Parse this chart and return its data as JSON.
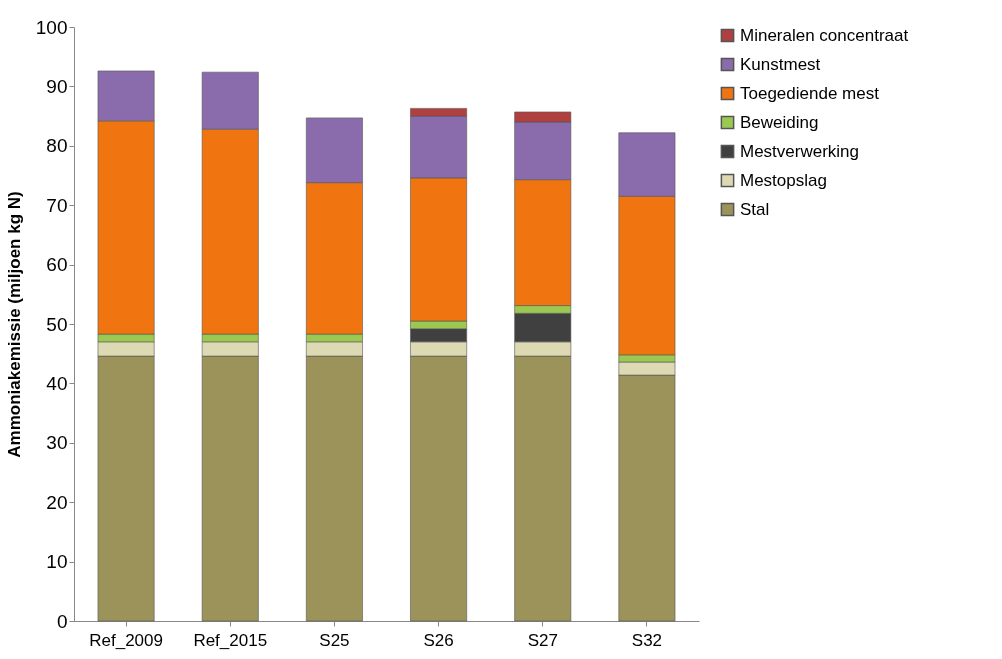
{
  "chart_data": {
    "type": "bar",
    "stacked": true,
    "ylabel": "Ammoniakemissie (miljoen kg N)",
    "categories": [
      "Ref_2009",
      "Ref_2015",
      "S25",
      "S26",
      "S27",
      "S32"
    ],
    "series": [
      {
        "name": "Stal",
        "color": "#9c935a",
        "values": [
          44.6,
          44.6,
          44.6,
          44.6,
          44.6,
          41.4
        ]
      },
      {
        "name": "Mestopslag",
        "color": "#ddd9b3",
        "values": [
          2.4,
          2.4,
          2.4,
          2.4,
          2.4,
          2.2
        ]
      },
      {
        "name": "Mestverwerking",
        "color": "#404040",
        "values": [
          null,
          null,
          null,
          2.2,
          4.8,
          null
        ]
      },
      {
        "name": "Beweiding",
        "color": "#9bc850",
        "values": [
          1.3,
          1.3,
          1.3,
          1.3,
          1.3,
          1.2
        ]
      },
      {
        "name": "Toegediende mest",
        "color": "#f07510",
        "values": [
          35.9,
          34.5,
          25.5,
          24.1,
          21.2,
          26.7
        ]
      },
      {
        "name": "Kunstmest",
        "color": "#8a6bab",
        "values": [
          8.4,
          9.6,
          10.9,
          10.4,
          9.7,
          10.7
        ]
      },
      {
        "name": "Mineralen concentraat",
        "color": "#b04040",
        "values": [
          null,
          null,
          null,
          1.3,
          1.7,
          null
        ]
      }
    ],
    "ylim": [
      0,
      100
    ],
    "yticks": [
      0,
      10,
      20,
      30,
      40,
      50,
      60,
      70,
      80,
      90,
      100
    ],
    "grid": false,
    "legend": "right"
  }
}
